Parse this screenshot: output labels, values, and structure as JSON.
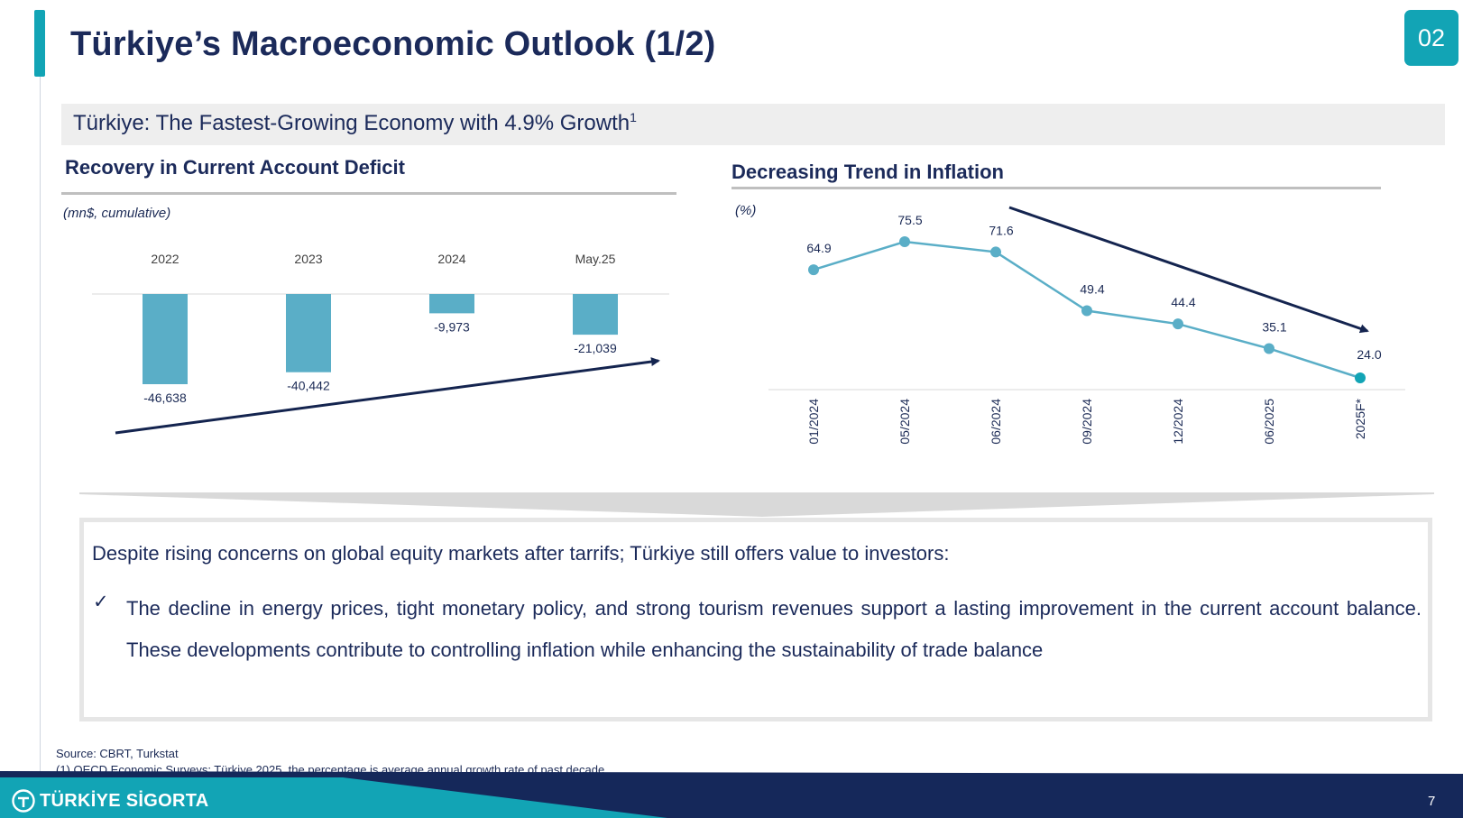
{
  "header": {
    "title": "Türkiye’s Macroeconomic Outlook (1/2)",
    "section_number": "02"
  },
  "subtitle": {
    "text": "Türkiye: The Fastest-Growing Economy with 4.9% Growth",
    "footnote_marker": "1"
  },
  "chart_data": [
    {
      "type": "bar",
      "title": "Recovery in Current Account Deficit",
      "unit": "(mn$, cumulative)",
      "categories": [
        "2022",
        "2023",
        "2024",
        "May.25"
      ],
      "values": [
        -46638,
        -40442,
        -9973,
        -21039
      ],
      "value_labels": [
        "-46,638",
        "-40,442",
        "-9,973",
        "-21,039"
      ],
      "bar_color": "#5aaec7",
      "trend_arrow": "up",
      "trend_color": "#14244f"
    },
    {
      "type": "line",
      "title": "Decreasing Trend in Inflation",
      "unit": "(%)",
      "categories": [
        "01/2024",
        "05/2024",
        "06/2024",
        "09/2024",
        "12/2024",
        "06/2025",
        "2025F*"
      ],
      "values": [
        64.9,
        75.5,
        71.6,
        49.4,
        44.4,
        35.1,
        24.0
      ],
      "value_labels": [
        "64.9",
        "75.5",
        "71.6",
        "49.4",
        "44.4",
        "35.1",
        "24.0"
      ],
      "line_color": "#5aaec7",
      "last_point_color": "#12a4b5",
      "trend_arrow": "down",
      "trend_color": "#14244f"
    }
  ],
  "message": {
    "intro": "Despite rising concerns on global equity markets after tarrifs; Türkiye still offers value to investors:",
    "bullet_icon": "checkmark-icon",
    "bullet": "The decline in energy prices, tight monetary policy, and strong tourism revenues support a lasting improvement in the current account balance. These developments contribute to controlling inflation while enhancing the sustainability of  trade balance"
  },
  "footnotes": {
    "source": "Source: CBRT, Turkstat",
    "note1": "(1) OECD Economic Surveys: Türkiye 2025, the percentage is average annual growth rate of past decade"
  },
  "footer": {
    "logo_text": "TÜRKİYE SİGORTA",
    "page_number": "7"
  },
  "colors": {
    "accent": "#12a4b5",
    "navy": "#1b2a5a",
    "footer_navy": "#15285a"
  }
}
